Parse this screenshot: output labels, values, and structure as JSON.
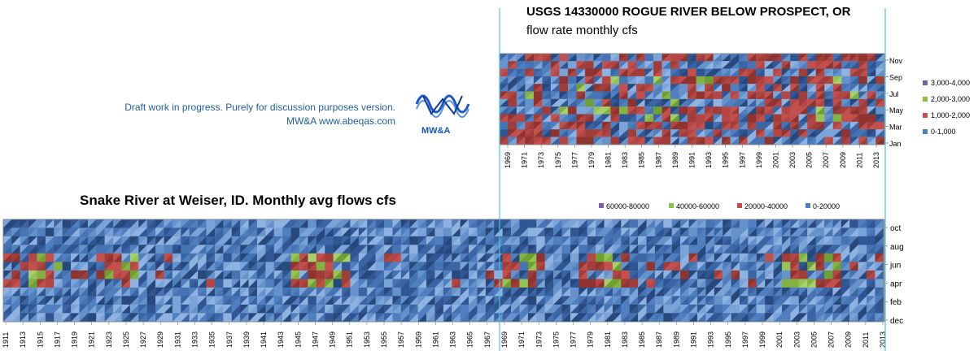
{
  "note": {
    "line1": "Draft work in progress.  Purely for discussion purposes version.",
    "line2": "MW&A www.abeqas.com"
  },
  "logo": {
    "text": "MW&A",
    "icon": "wave-logo-icon",
    "color": "#1b56c4"
  },
  "chart_data": [
    {
      "type": "heatmap",
      "title": "USGS 14330000 ROGUE RIVER BELOW PROSPECT, OR",
      "subtitle": "flow rate  monthly cfs",
      "x_tick_labels": [
        "1969",
        "1971",
        "1973",
        "1975",
        "1977",
        "1979",
        "1981",
        "1983",
        "1985",
        "1987",
        "1989",
        "1991",
        "1993",
        "1995",
        "1997",
        "1999",
        "2001",
        "2003",
        "2005",
        "2007",
        "2009",
        "2011",
        "2013"
      ],
      "y_tick_labels": [
        "Jan",
        "Mar",
        "May",
        "Jul",
        "Sep",
        "Nov"
      ],
      "xlim": [
        1969,
        2013
      ],
      "legend": [
        {
          "label": "3,000-4,000",
          "color": "#7b5ea8"
        },
        {
          "label": "2,000-3,000",
          "color": "#8cc04b"
        },
        {
          "label": "1,000-2,000",
          "color": "#c1504d"
        },
        {
          "label": "0-1,000",
          "color": "#4f7fbf"
        }
      ],
      "legend_position": "right",
      "levels": [
        0,
        1000,
        2000,
        3000,
        4000
      ]
    },
    {
      "type": "heatmap",
      "title": "Snake River at Weiser, ID. Monthly avg flows cfs",
      "x_tick_labels": [
        "1911",
        "1913",
        "1915",
        "1917",
        "1919",
        "1921",
        "1923",
        "1925",
        "1927",
        "1929",
        "1931",
        "1933",
        "1935",
        "1937",
        "1939",
        "1941",
        "1943",
        "1945",
        "1947",
        "1949",
        "1951",
        "1953",
        "1955",
        "1957",
        "1959",
        "1961",
        "1963",
        "1965",
        "1967",
        "1969",
        "1971",
        "1973",
        "1975",
        "1977",
        "1979",
        "1981",
        "1983",
        "1985",
        "1987",
        "1989",
        "1991",
        "1993",
        "1995",
        "1997",
        "1999",
        "2001",
        "2003",
        "2005",
        "2007",
        "2009",
        "2011",
        "2013"
      ],
      "y_tick_labels": [
        "dec",
        "feb",
        "apr",
        "jun",
        "aug",
        "oct"
      ],
      "xlim": [
        1911,
        2013
      ],
      "legend": [
        {
          "label": "60000-80000",
          "color": "#7b5ea8"
        },
        {
          "label": "40000-60000",
          "color": "#8cc04b"
        },
        {
          "label": "20000-40000",
          "color": "#c1504d"
        },
        {
          "label": "0-20000",
          "color": "#4f7fbf"
        }
      ],
      "legend_position": "top",
      "levels": [
        0,
        20000,
        40000,
        60000,
        80000
      ]
    }
  ]
}
